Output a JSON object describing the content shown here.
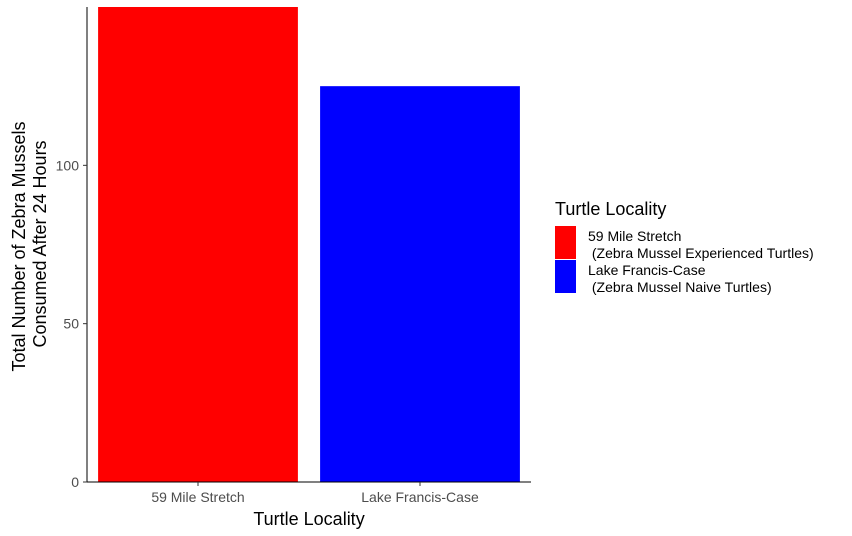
{
  "chart_data": {
    "type": "bar",
    "categories": [
      "59 Mile Stretch",
      "Lake Francis-Case"
    ],
    "values": [
      150,
      125
    ],
    "colors": [
      "#FF0000",
      "#0000FF"
    ],
    "xlabel": "Turtle Locality",
    "ylabel": [
      "Total Number of Zebra Mussels",
      "Consumed After 24 Hours"
    ],
    "ylim": [
      0,
      150
    ],
    "yticks": [
      0,
      50,
      100
    ],
    "grid": false,
    "legend": {
      "title": "Turtle Locality",
      "placement": "right",
      "entries": [
        {
          "lines": [
            "59 Mile Stretch",
            " (Zebra Mussel Experienced Turtles)"
          ],
          "color": "#FF0000"
        },
        {
          "lines": [
            "Lake Francis-Case",
            " (Zebra Mussel Naive Turtles)"
          ],
          "color": "#0000FF"
        }
      ]
    }
  }
}
